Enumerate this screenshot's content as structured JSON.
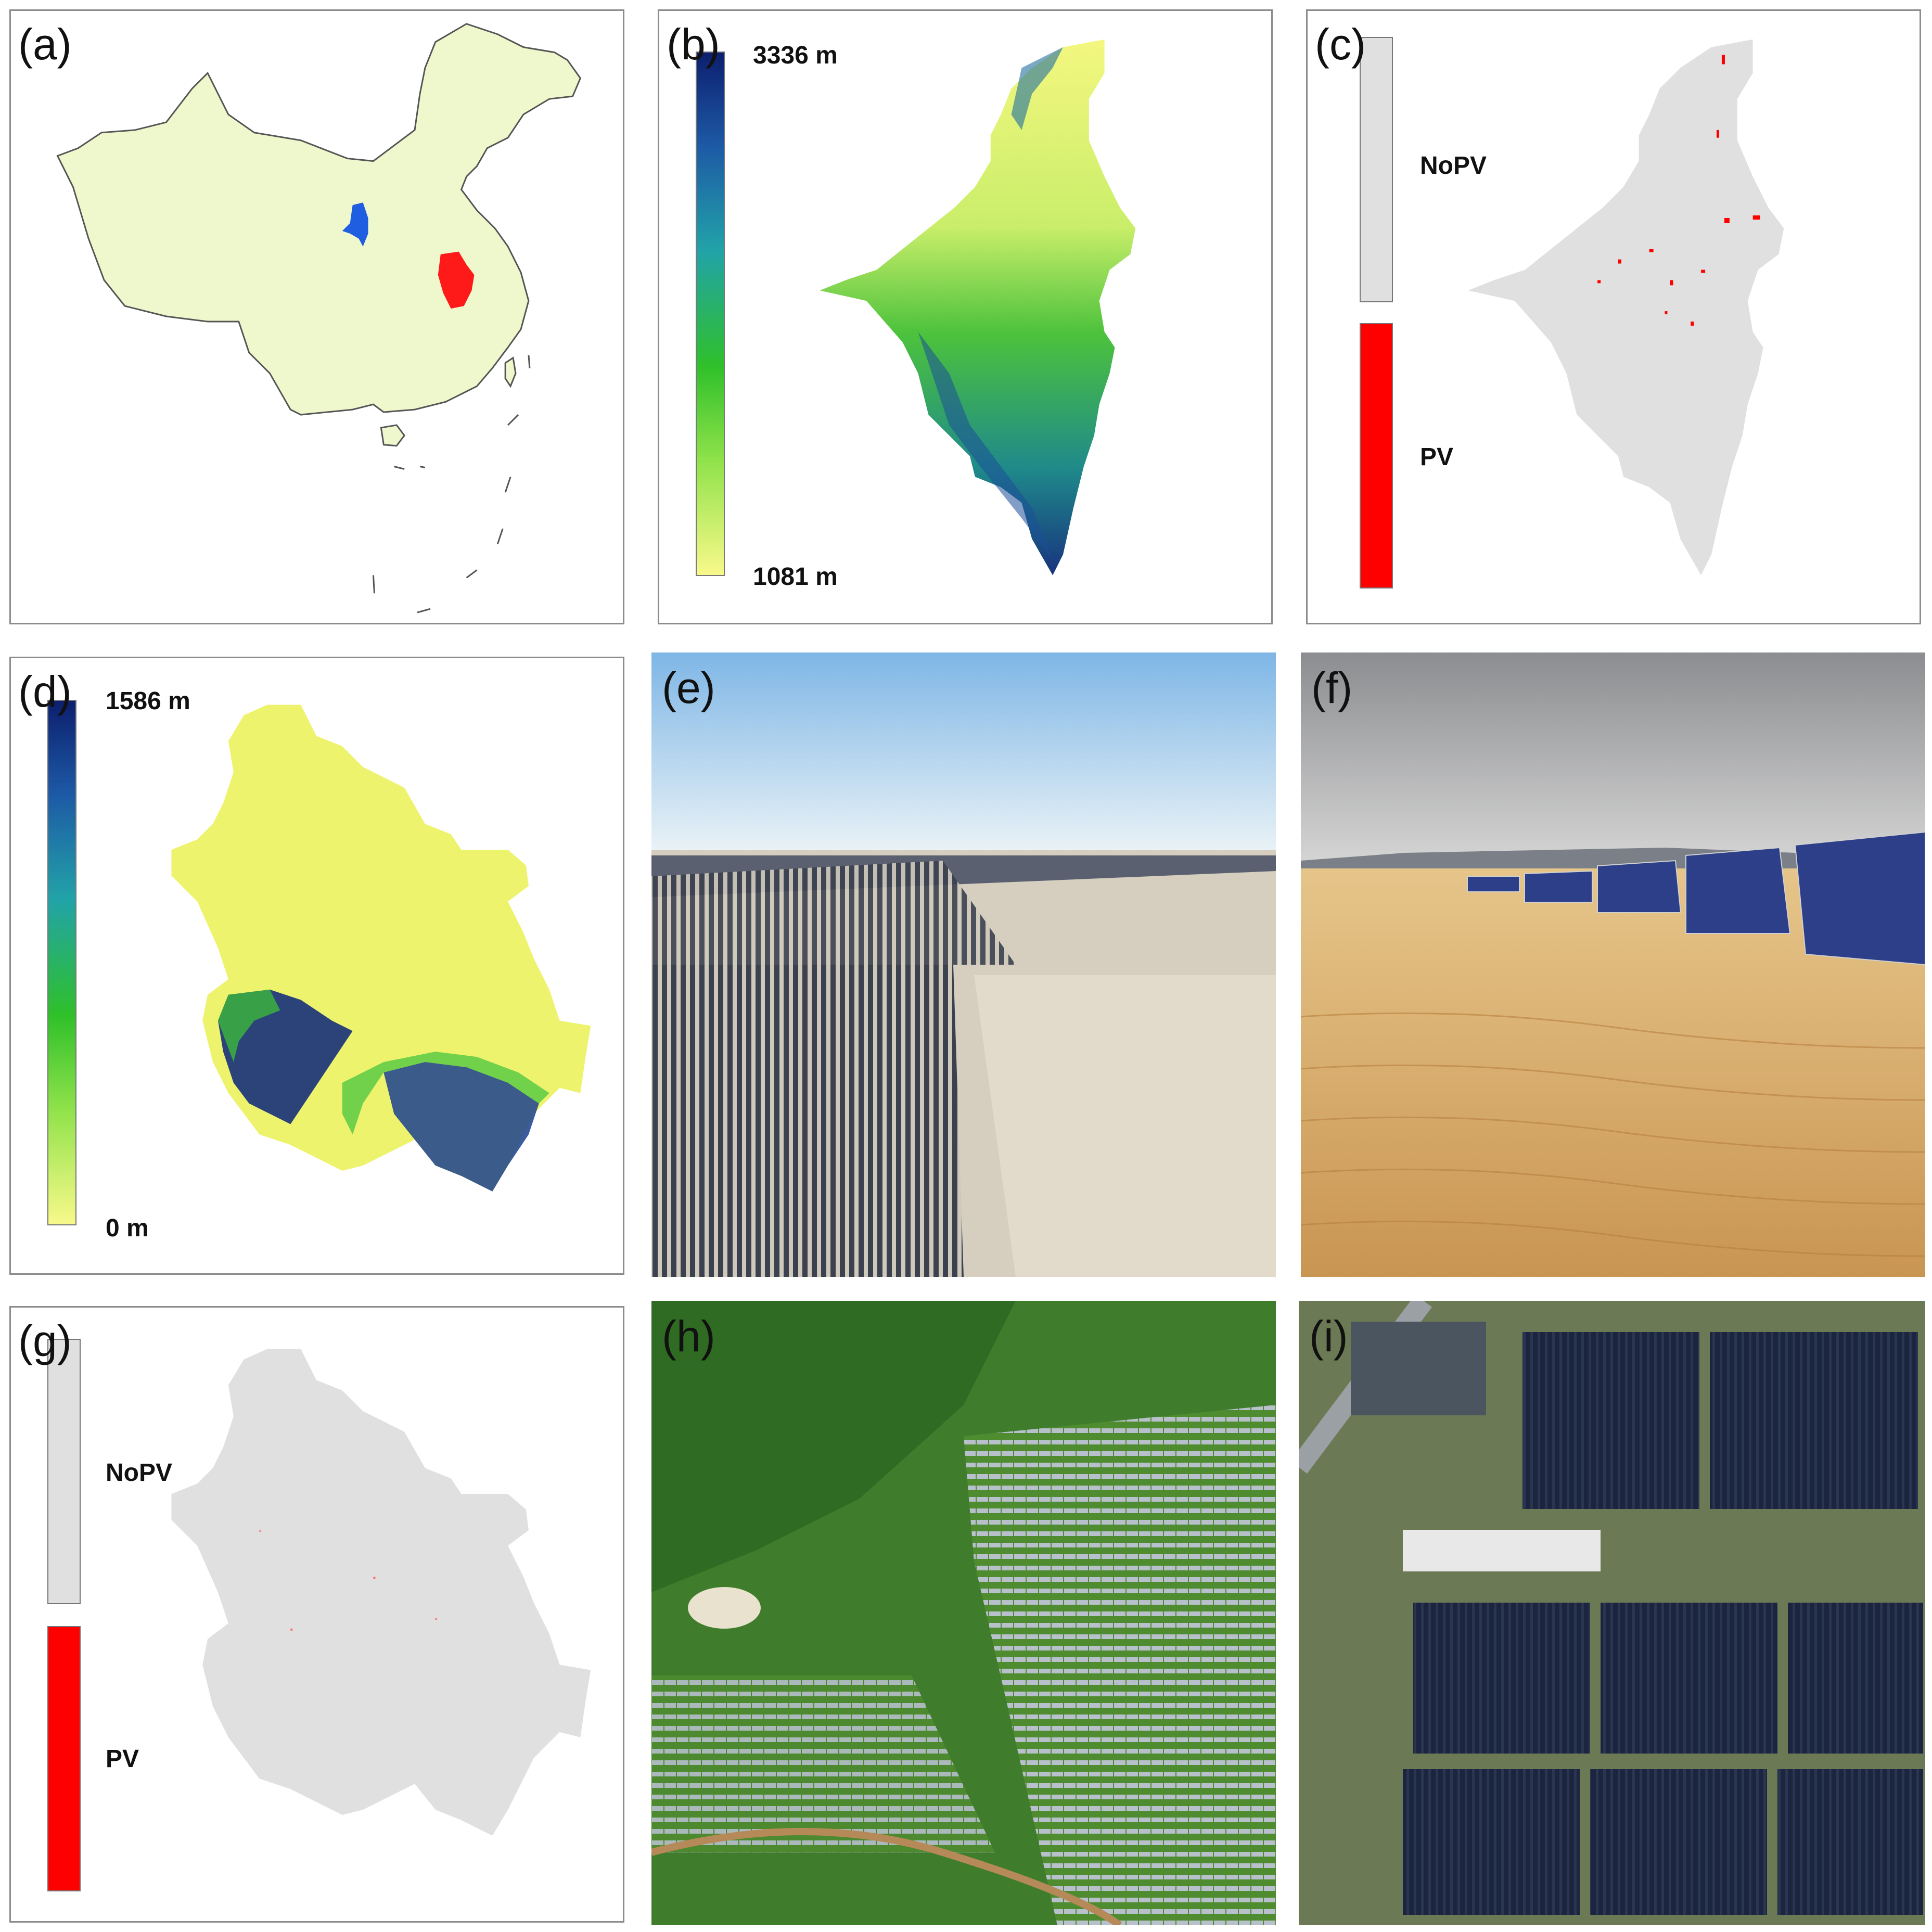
{
  "panels": {
    "a": {
      "label": "(a)"
    },
    "b": {
      "label": "(b)",
      "colorbar_max": "3336 m",
      "colorbar_min": "1081 m"
    },
    "c": {
      "label": "(c)",
      "legend": [
        {
          "name": "NoPV",
          "color": "#e0e0e0"
        },
        {
          "name": "PV",
          "color": "#ff0000"
        }
      ]
    },
    "d": {
      "label": "(d)",
      "colorbar_max": "1586 m",
      "colorbar_min": "0 m"
    },
    "e": {
      "label": "(e)"
    },
    "f": {
      "label": "(f)"
    },
    "g": {
      "label": "(g)",
      "legend": [
        {
          "name": "NoPV",
          "color": "#e0e0e0"
        },
        {
          "name": "PV",
          "color": "#ff0000"
        }
      ]
    },
    "h": {
      "label": "(h)"
    },
    "i": {
      "label": "(i)"
    }
  },
  "colors": {
    "china_fill": "#eef8cc",
    "ningxia": "#1f5ee0",
    "anhui": "#ff1a1a",
    "nopv": "#e0e0e0",
    "pv": "#ff0000"
  }
}
